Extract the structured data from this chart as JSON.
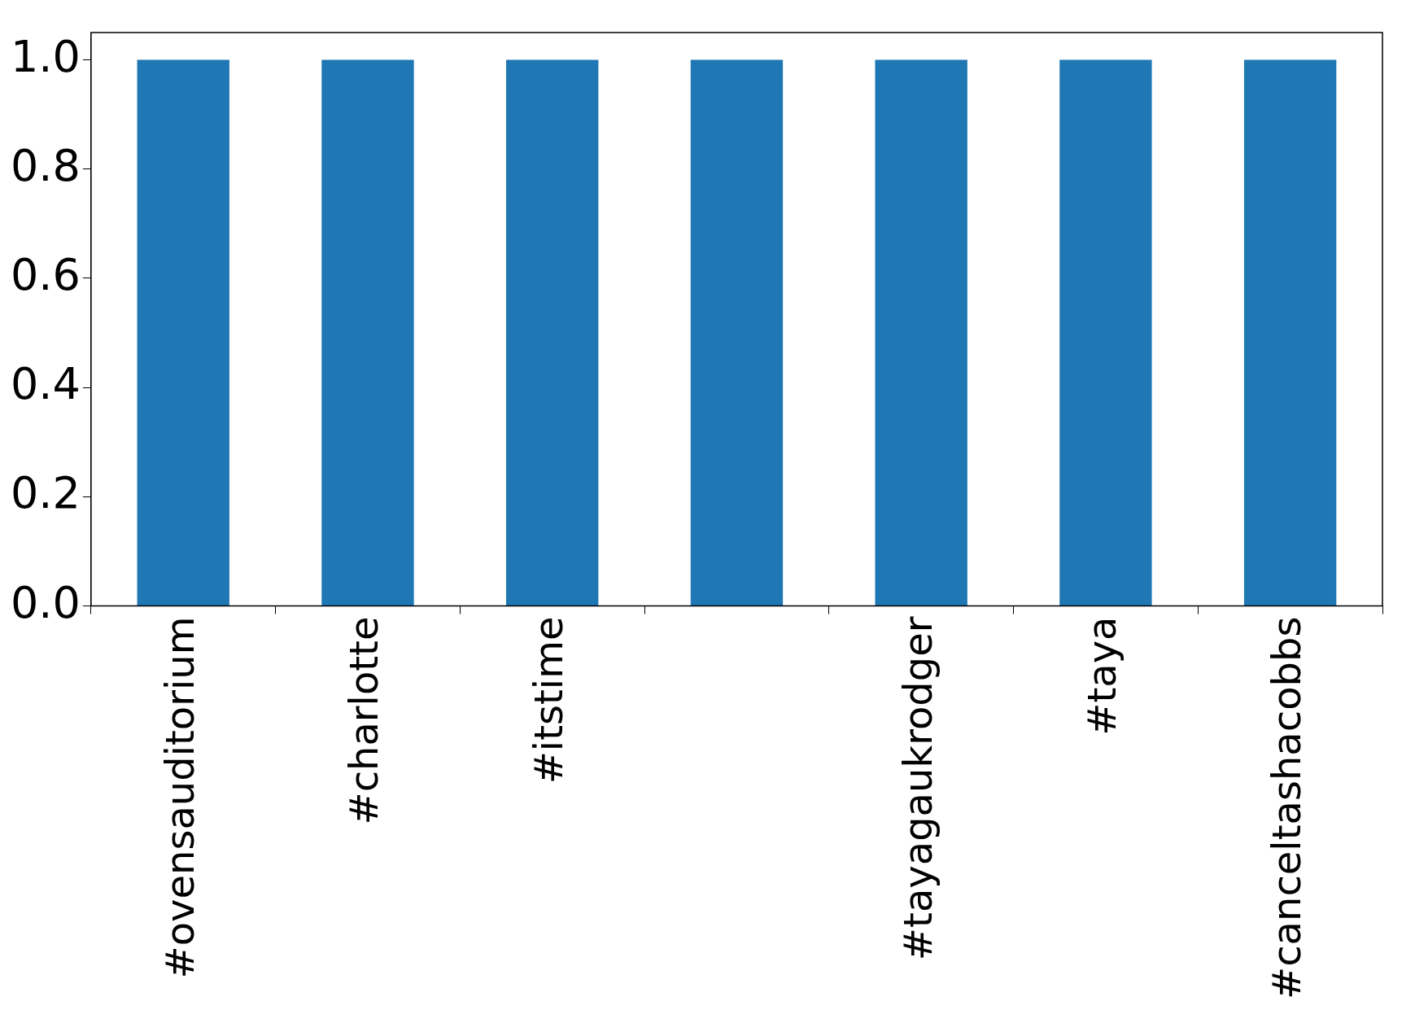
{
  "chart_data": {
    "type": "bar",
    "categories": [
      "#ovensauditorium",
      "#charlotte",
      "#itstime",
      null,
      "#tayagaukrodger",
      "#taya",
      "#canceltashacobbs"
    ],
    "values": [
      1,
      1,
      1,
      1,
      1,
      1,
      1
    ],
    "color": "#1f77b4",
    "ylim": [
      0,
      1.05
    ],
    "yticks": [
      {
        "value": 0,
        "label": "0.0"
      },
      {
        "value": 0.2,
        "label": "0.2"
      },
      {
        "value": 0.4,
        "label": "0.4"
      },
      {
        "value": 0.6,
        "label": "0.6"
      },
      {
        "value": 0.8,
        "label": "0.8"
      },
      {
        "value": 1,
        "label": "1.0"
      }
    ],
    "grid": false,
    "legend": false
  }
}
